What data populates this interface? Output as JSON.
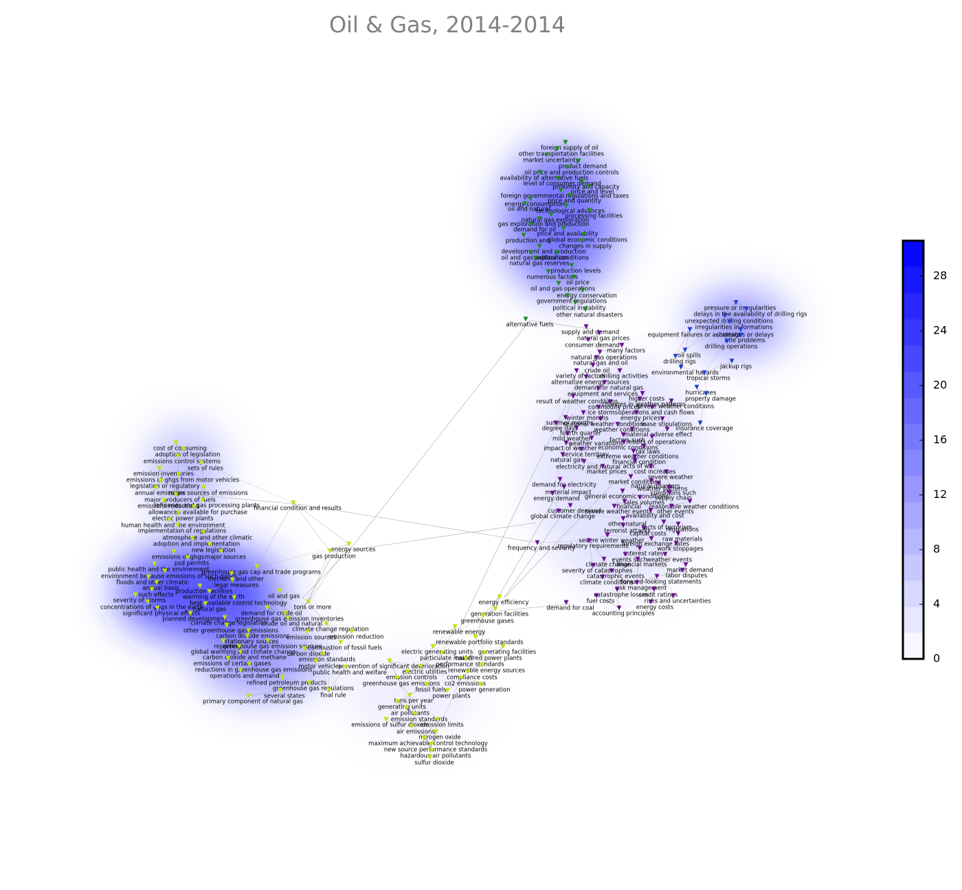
{
  "chart_data": {
    "type": "network",
    "title": "Oil & Gas, 2014-2014",
    "colorbar": {
      "ylim": [
        0,
        30.6
      ],
      "yticks": [
        0,
        4,
        8,
        12,
        16,
        20,
        24,
        28
      ],
      "colors": [
        "#ffffff",
        "#0000ff"
      ]
    },
    "clusters": [
      {
        "color": "#1e8c1e",
        "nodes": [
          "foreign supply of oil",
          "other transportation facilities",
          "market uncertainty",
          "product demand",
          "oil price and production controls",
          "availability of alternative fuels",
          "level of consumer demand",
          "proximity and capacity",
          "price and level",
          "foreign governmental regulations and taxes",
          "price and quantity",
          "energy consumption",
          "oil and natural",
          "technological advances",
          "processing facilities",
          "natural gas exploration",
          "gas exploration and production",
          "demand for oil",
          "price and availability",
          "production and",
          "global economic conditions",
          "changes in supply",
          "development and production",
          "oil and gas exploration",
          "political conditions",
          "natural gas reserves",
          "production levels",
          "numerous factors",
          "oil price",
          "oil and gas operations",
          "energy conservation",
          "government regulations",
          "political instability",
          "other natural disasters",
          "alternative fuels"
        ]
      },
      {
        "color": "#1f3fd8",
        "nodes": [
          "pressure or irregularities",
          "delays in the availability of drilling rigs",
          "unexpected drilling conditions",
          "irregularities in formations",
          "equipment failures or accidents",
          "shortages or delays",
          "title problems",
          "drilling operations",
          "oil spills",
          "drilling rigs",
          "jackup rigs",
          "environmental hazards",
          "tropical storms",
          "hurricanes",
          "property damage",
          "insurance coverage"
        ]
      },
      {
        "color": "#6a0d91",
        "nodes": [
          "supply and demand",
          "natural gas prices",
          "consumer demand",
          "many factors",
          "natural gas operations",
          "natural gas and oil",
          "crude oil",
          "variety of factors",
          "drilling activities",
          "alternative energy sources",
          "demand for natural gas",
          "equipment and services",
          "higher costs",
          "changes in weather patterns",
          "result of weather conditions",
          "commodity prices",
          "severe weather conditions",
          "ice storms",
          "operations and cash flows",
          "winter months",
          "energy prices",
          "summer months",
          "seasonal weather conditions",
          "lease stipulations",
          "degree days",
          "weather conditions",
          "fourth quarter",
          "adverse effect",
          "material",
          "mild weather",
          "factors such",
          "results of operations",
          "weather variations",
          "economic conditions",
          "impact of weather",
          "service territory",
          "tax laws",
          "extreme weather conditions",
          "natural gas",
          "financial condition",
          "acts of war",
          "electricity and natural",
          "market prices",
          "cost increases",
          "severe weather",
          "demand for electricity",
          "market conditions",
          "natural disasters",
          "weather patterns",
          "material impact",
          "general economic conditions",
          "conditions such",
          "energy demand",
          "sales volumes",
          "supply chain",
          "financial",
          "reasonable weather conditions",
          "customer demand",
          "severe weather events",
          "other events",
          "global climate change",
          "availability and cost",
          "other natural",
          "acts of terrorism",
          "terrorist attacks",
          "regulations",
          "capital costs",
          "raw materials",
          "severe winter weather",
          "foreign exchange rates",
          "frequency and severity",
          "regulatory requirements",
          "work stoppages",
          "interest rates",
          "events such",
          "weather events",
          "climate change",
          "financial markets",
          "market demand",
          "severity of catastrophes",
          "labor disputes",
          "catastrophic events",
          "climate conditions",
          "forward-looking statements",
          "risk management",
          "catastrophe losses",
          "credit ratings",
          "fuel costs",
          "risks and uncertainties",
          "demand for coal",
          "energy costs",
          "accounting principles"
        ]
      },
      {
        "color": "#c8e000",
        "nodes": [
          "cost of consuming",
          "adoption of legislation",
          "emissions control systems",
          "sets of rules",
          "emission inventories",
          "emissions of ghgs from motor vehicles",
          "legislation or regulatory",
          "annual emissions",
          "major sources of emissions",
          "major producers of fuels",
          "refineries and gas processing plants",
          "emissions reductions",
          "financial condition and results",
          "allowances available for purchase",
          "electric power plants",
          "human health and the environment",
          "implementation of regulations",
          "atmosphere and other climatic",
          "adoption and implementation",
          "new legislation",
          "energy sources",
          "emissions of ghgs",
          "major sources",
          "gas production",
          "psd permits",
          "public health and the environment",
          "greenhouse gas cap and trade programs",
          "environment because emissions of such gases",
          "methane and other",
          "floods and other climatic",
          "legal measures",
          "annual basis",
          "production facilities",
          "warming of the earth",
          "oil and gas",
          "such effects",
          "severity of storms",
          "best available control technology",
          "concentrations of ghgs in the earth",
          "natural gas",
          "tons or more",
          "significant physical effects",
          "demand for crude oil",
          "planned development",
          "greenhouse gas emission inventories",
          "climate change legislation",
          "crude oil and natural",
          "other greenhouse gas emissions",
          "climate change regulation",
          "carbon dioxide emissions",
          "emission sources",
          "emission reduction",
          "stationary sources",
          "reporting",
          "greenhouse gas emission sources",
          "combustion of fossil fuels",
          "renewable energy",
          "renewable portfolio standards",
          "global warming and climate change",
          "carbon dioxide",
          "carbon dioxide and methane",
          "emission standards",
          "electric generating units",
          "generating facilities",
          "particulate matter",
          "coal-fired power plants",
          "emissions of certain gases",
          "performance standards",
          "prevention of significant deterioration",
          "motor vehicles",
          "reductions in greenhouse gas emissions",
          "public health and welfare",
          "renewable energy sources",
          "electric utilities",
          "operations and demand",
          "emission controls",
          "compliance costs",
          "refined petroleum products",
          "greenhouse gas emissions",
          "co2 emissions",
          "greenhouse gas regulations",
          "fossil fuels",
          "power generation",
          "several states",
          "final rule",
          "power plants",
          "primary component of natural gas",
          "tons per year",
          "generating units",
          "air pollutants",
          "emission standards",
          "emissions of sulfur dioxide",
          "emission limits",
          "air emissions",
          "nitrogen oxide",
          "maximum achievable control technology",
          "new source performance standards",
          "hazardous air pollutants",
          "sulfur dioxide",
          "energy efficiency",
          "generation facilities",
          "greenhouse gases"
        ]
      }
    ]
  }
}
